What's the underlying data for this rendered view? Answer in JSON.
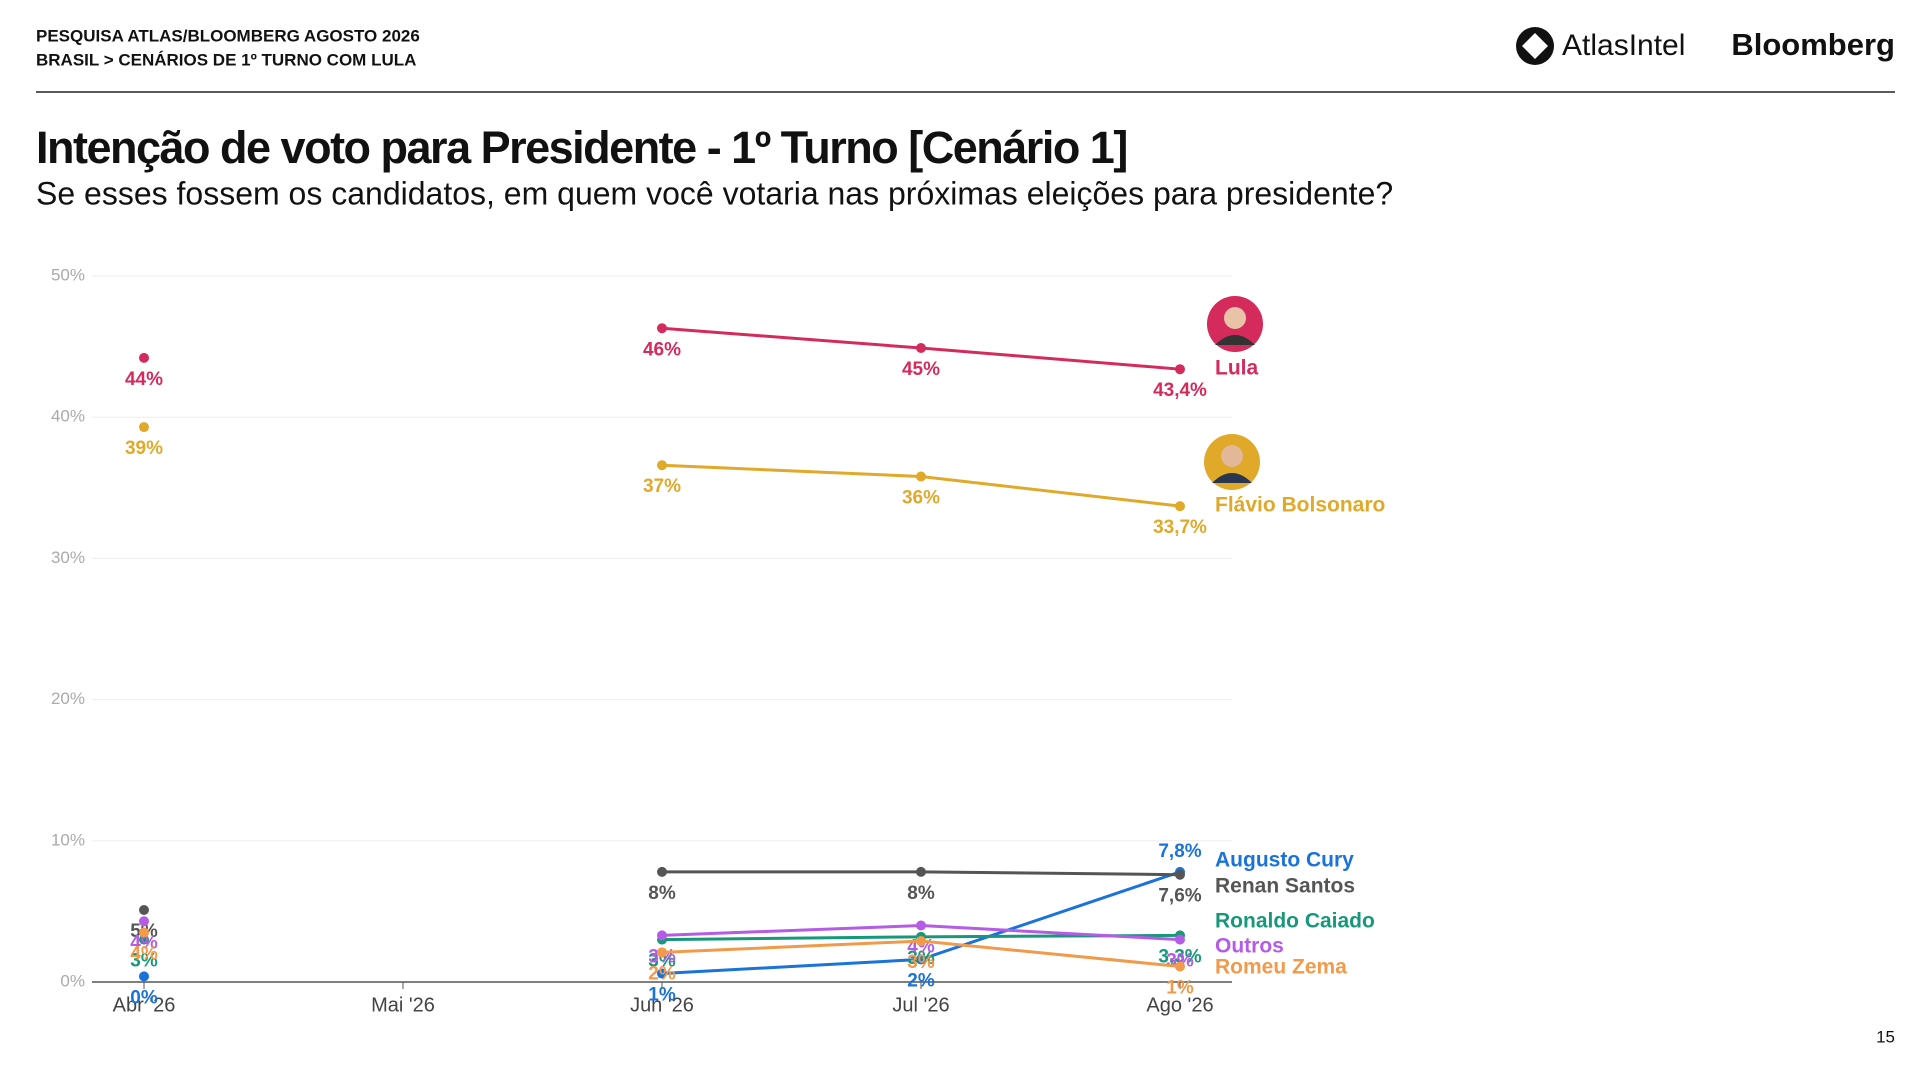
{
  "header": {
    "survey": "PESQUISA ATLAS/BLOOMBERG AGOSTO 2026",
    "breadcrumb": "BRASIL > CENÁRIOS DE 1º TURNO COM LULA",
    "logo_atlas": "AtlasIntel",
    "logo_bloomberg": "Bloomberg"
  },
  "page_number": "15",
  "chart_data": {
    "type": "line",
    "title": "Intenção de voto para Presidente  - 1º Turno [Cenário 1]",
    "subtitle": "Se esses fossem os candidatos, em quem você votaria nas próximas eleições para presidente?",
    "categories": [
      "Abr '26",
      "Mai '26",
      "Jun '26",
      "Jul '26",
      "Ago '26"
    ],
    "ylim": [
      0,
      50
    ],
    "yticks": [
      {
        "value": 0,
        "label": "0%"
      },
      {
        "value": 10,
        "label": "10%"
      },
      {
        "value": 20,
        "label": "20%"
      },
      {
        "value": 30,
        "label": "30%"
      },
      {
        "value": 40,
        "label": "40%"
      },
      {
        "value": 50,
        "label": "50%"
      }
    ],
    "grid": true,
    "series": [
      {
        "name": "Lula",
        "color": "#d42a5c",
        "values": [
          44.2,
          null,
          46.3,
          44.9,
          43.4
        ],
        "value_labels": [
          "44%",
          null,
          "46%",
          "45%",
          "43,4%"
        ]
      },
      {
        "name": "Flávio Bolsonaro",
        "color": "#e0a92a",
        "values": [
          39.3,
          null,
          36.6,
          35.8,
          33.7
        ],
        "value_labels": [
          "39%",
          null,
          "37%",
          "36%",
          "33,7%"
        ]
      },
      {
        "name": "Augusto Cury",
        "color": "#1a73d9",
        "values": [
          0.4,
          null,
          0.6,
          1.6,
          7.8
        ],
        "value_labels": [
          "0%",
          null,
          "1%",
          "2%",
          "7,8%"
        ]
      },
      {
        "name": "Renan Santos",
        "color": "#555555",
        "values": [
          5.1,
          null,
          7.8,
          7.8,
          7.6
        ],
        "value_labels": [
          "5%",
          null,
          "8%",
          "8%",
          "7,6%"
        ]
      },
      {
        "name": "Ronaldo Caiado",
        "color": "#17987a",
        "values": [
          3.0,
          null,
          3.0,
          3.2,
          3.3
        ],
        "value_labels": [
          "3%",
          null,
          "3%",
          "3%",
          "3,3%"
        ]
      },
      {
        "name": "Outros",
        "color": "#b45ce6",
        "values": [
          4.3,
          null,
          3.3,
          4.0,
          3.0
        ],
        "value_labels": [
          "4%",
          null,
          "3%",
          "4%",
          "3%"
        ]
      },
      {
        "name": "Romeu Zema",
        "color": "#f09a4a",
        "values": [
          3.5,
          null,
          2.1,
          2.9,
          1.1
        ],
        "value_labels": [
          "4%",
          null,
          "2%",
          "3%",
          "1%"
        ]
      }
    ]
  }
}
